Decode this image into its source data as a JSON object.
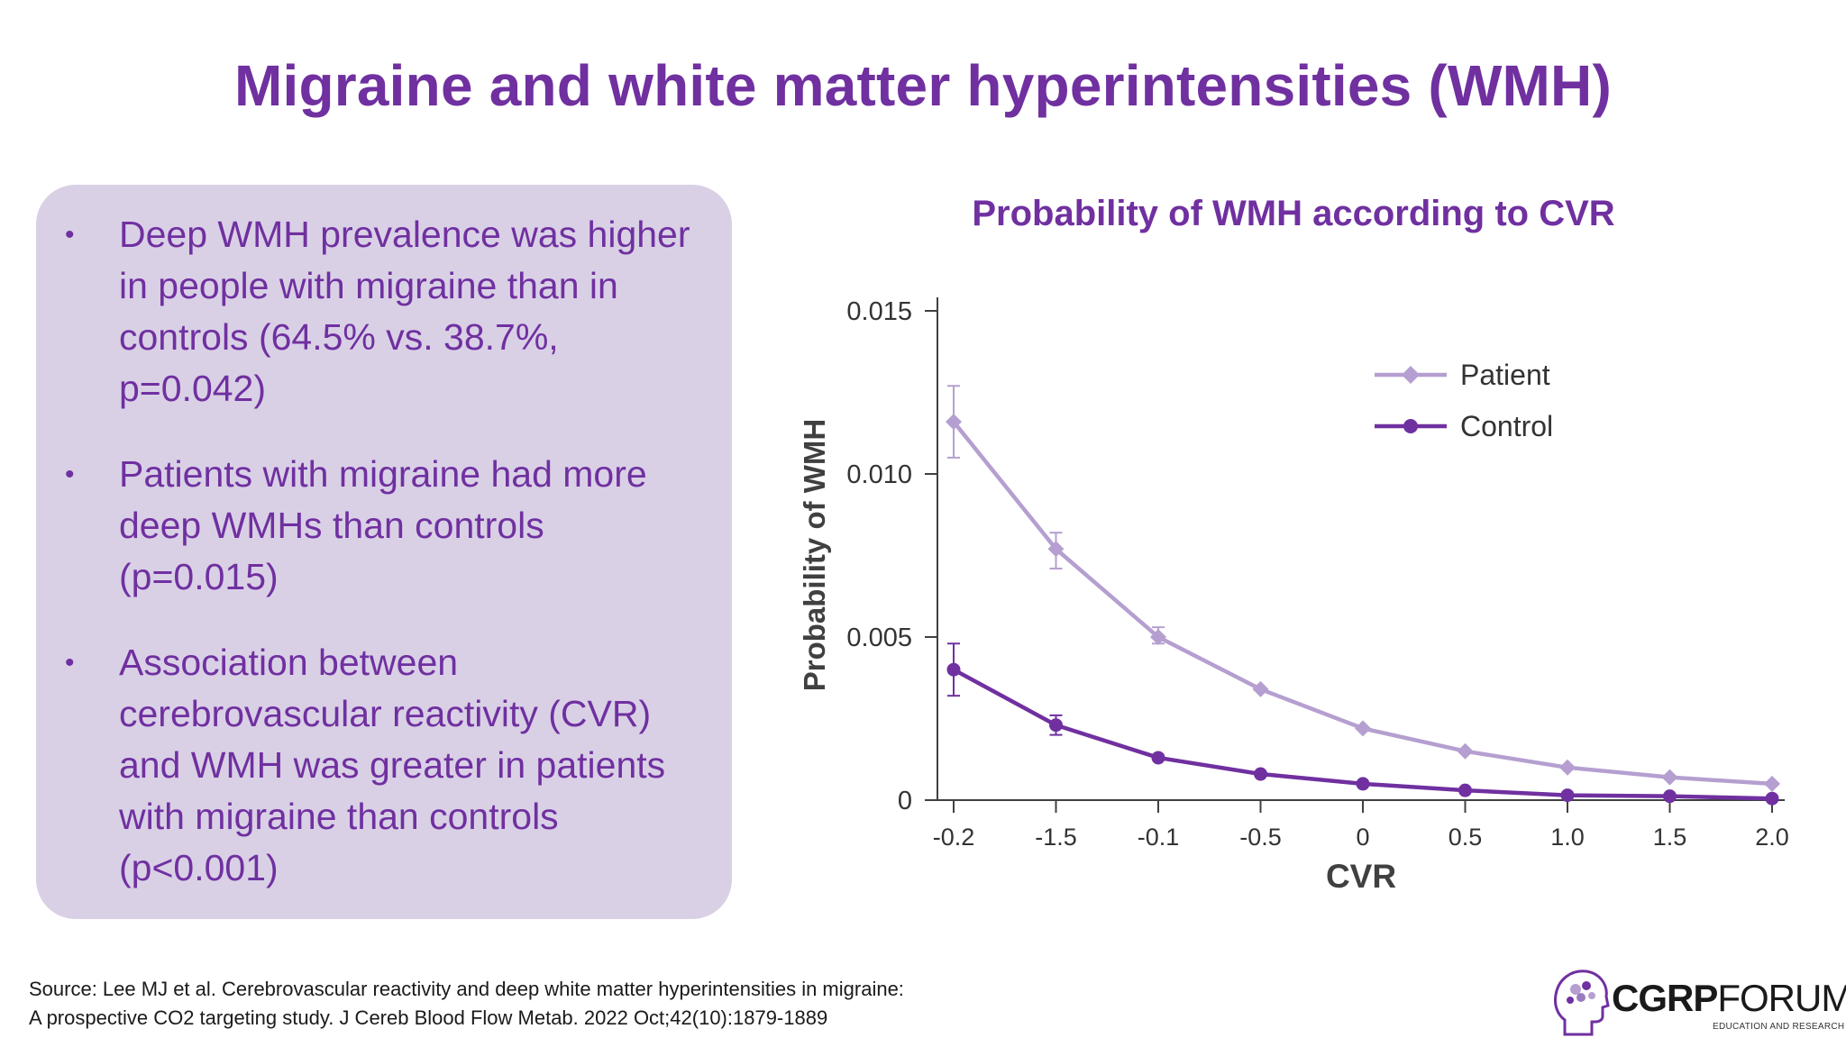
{
  "title": "Migraine and white matter hyperintensities (WMH)",
  "bullets": [
    "Deep WMH prevalence was higher in people with migraine than in controls (64.5% vs. 38.7%, p=0.042)",
    "Patients with migraine had more deep WMHs than controls (p=0.015)",
    "Association between cerebrovascular reactivity (CVR) and WMH was greater in patients with migraine than controls (p<0.001)"
  ],
  "bullet_symbol": "•",
  "colors": {
    "accent": "#7030a0",
    "panel": "#d9d0e6",
    "patient": "#b59fd0",
    "control": "#7030a0",
    "axis": "#404040"
  },
  "chart_data": {
    "type": "line",
    "title": "Probability of WMH according to CVR",
    "xlabel": "CVR",
    "ylabel": "Probability of WMH",
    "categories": [
      "-0.2",
      "-1.5",
      "-0.1",
      "-0.5",
      "0",
      "0.5",
      "1.0",
      "1.5",
      "2.0"
    ],
    "ylim": [
      0,
      0.015
    ],
    "yticks": [
      0,
      0.005,
      0.01,
      0.015
    ],
    "ytick_labels": [
      "0",
      "0.005",
      "0.010",
      "0.015"
    ],
    "legend_position": "top-right",
    "series": [
      {
        "name": "Patient",
        "marker": "diamond",
        "values": [
          0.0116,
          0.0077,
          0.005,
          0.0034,
          0.0022,
          0.0015,
          0.001,
          0.0007,
          0.0005
        ],
        "error": [
          [
            0.0105,
            0.0127
          ],
          [
            0.0071,
            0.0082
          ],
          [
            0.0048,
            0.0053
          ],
          null,
          null,
          null,
          null,
          null,
          null
        ]
      },
      {
        "name": "Control",
        "marker": "circle",
        "values": [
          0.004,
          0.0023,
          0.0013,
          0.0008,
          0.0005,
          0.0003,
          0.00015,
          0.00012,
          5e-05
        ],
        "error": [
          [
            0.0032,
            0.0048
          ],
          [
            0.002,
            0.0026
          ],
          null,
          null,
          null,
          null,
          null,
          null,
          null
        ]
      }
    ]
  },
  "source_lines": [
    "Source: Lee MJ et al. Cerebrovascular reactivity and deep white matter hyperintensities in migraine:",
    "A prospective CO2 targeting study. J Cereb Blood Flow Metab. 2022 Oct;42(10):1879-1889"
  ],
  "logo": {
    "icon": "brain-head-icon",
    "bold": "CGRP",
    "light": "FORUM",
    "tagline": "EDUCATION AND RESEARCH"
  }
}
